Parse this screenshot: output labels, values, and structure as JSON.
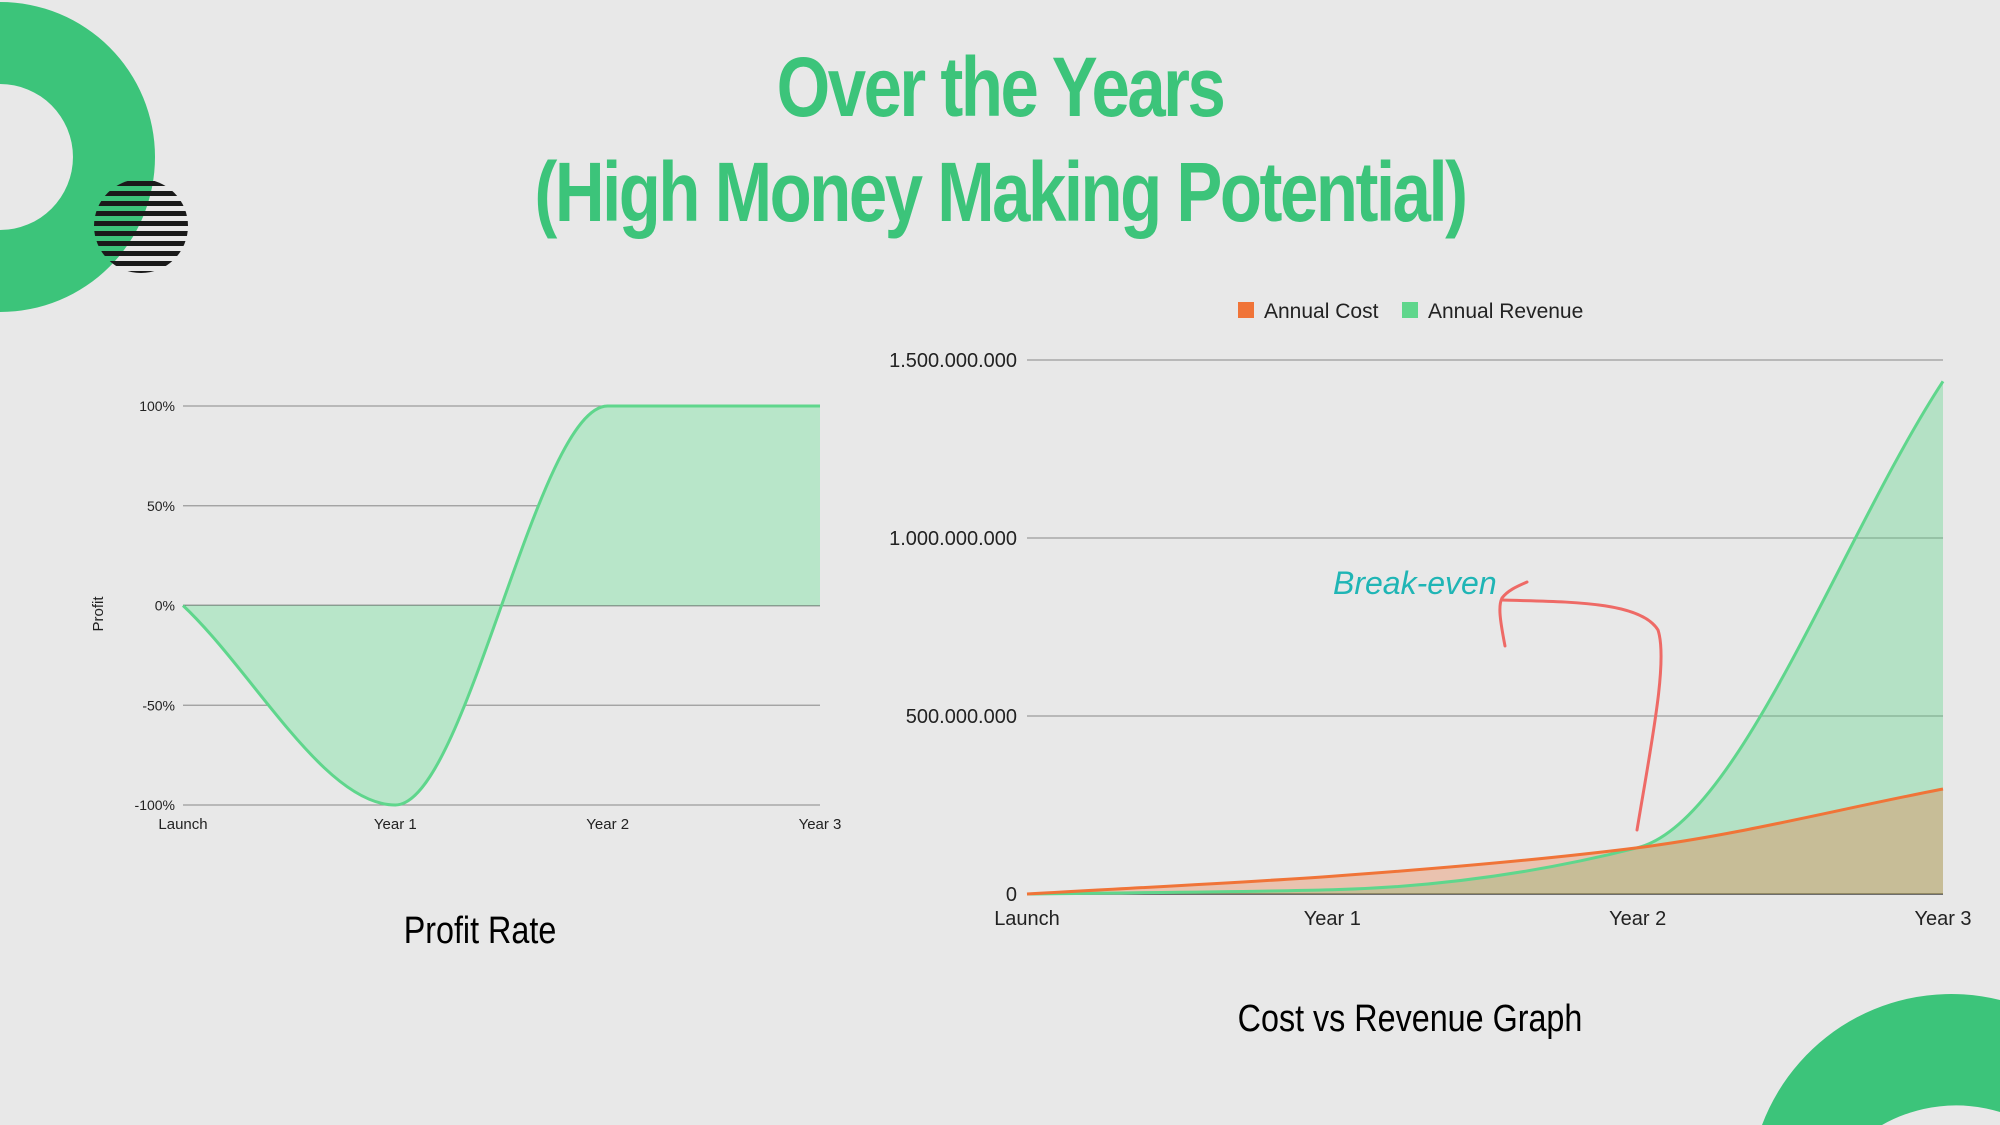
{
  "colors": {
    "background": "#e8e8e8",
    "accent": "#3cc47a",
    "cost": "#f07438",
    "revenue": "#5fd68c",
    "annotation_text": "#1fb5b5",
    "annotation_arrow": "#ee6a66"
  },
  "title": {
    "line1": "Over the Years",
    "line2": "(High Money Making Potential)"
  },
  "chart_data": [
    {
      "type": "area",
      "title": "Profit Rate",
      "ylabel": "Profit",
      "xlabel": "",
      "categories": [
        "Launch",
        "Year 1",
        "Year 2",
        "Year 3"
      ],
      "y_ticks": [
        "-100%",
        "-50%",
        "0%",
        "50%",
        "100%"
      ],
      "ylim": [
        -100,
        100
      ],
      "grid": true,
      "series": [
        {
          "values": [
            0,
            -100,
            100,
            100
          ]
        }
      ]
    },
    {
      "type": "area",
      "title": "Cost vs Revenue Graph",
      "xlabel": "",
      "ylabel": "",
      "categories": [
        "Launch",
        "Year 1",
        "Year 2",
        "Year 3"
      ],
      "y_ticks": [
        "0",
        "500.000.000",
        "1.000.000.000",
        "1.500.000.000"
      ],
      "ylim": [
        0,
        1500000000
      ],
      "grid": true,
      "legend": "top",
      "series": [
        {
          "name": "Annual Cost",
          "values": [
            0,
            50000000,
            130000000,
            295000000
          ]
        },
        {
          "name": "Annual Revenue",
          "values": [
            0,
            12000000,
            130000000,
            1440000000
          ]
        }
      ],
      "annotation": {
        "text": "Break-even",
        "at": "Year 2"
      }
    }
  ]
}
